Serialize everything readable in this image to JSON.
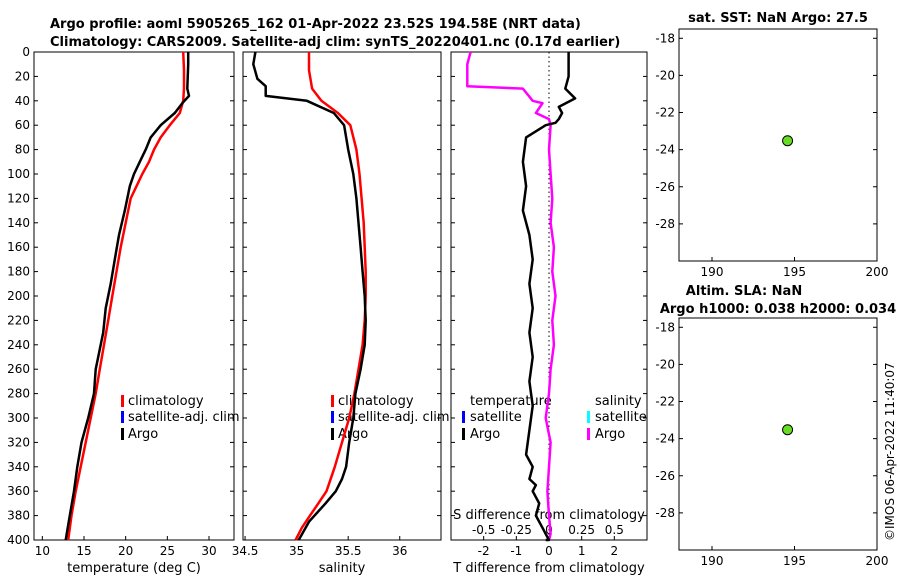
{
  "header": {
    "title_line1": "Argo profile: aoml 5905265_162 01-Apr-2022 23.52S 194.58E (NRT data)",
    "title_line2": "Climatology: CARS2009. Satellite-adj clim: synTS_20220401.nc (0.17d earlier)"
  },
  "colors": {
    "climatology": "#ff0000",
    "satellite_adj": "#0000ff",
    "argo": "#000000",
    "salinity_argo": "#ff00ff",
    "salinity_satellite": "#00ffff",
    "marker": "#66dd22"
  },
  "chart_data": [
    {
      "type": "line",
      "name": "temperature-profile",
      "xlabel": "temperature (deg C)",
      "xlim": [
        9,
        33
      ],
      "xticks": [
        10,
        15,
        20,
        25,
        30
      ],
      "ylim": [
        400,
        0
      ],
      "yticks": [
        0,
        20,
        40,
        60,
        80,
        100,
        120,
        140,
        160,
        180,
        200,
        220,
        240,
        260,
        280,
        300,
        320,
        340,
        360,
        380,
        400
      ],
      "legend": [
        "climatology",
        "satellite-adj. clim",
        "Argo"
      ],
      "series": [
        {
          "name": "climatology",
          "x": [
            26.9,
            27.0,
            27.0,
            26.9,
            26.5,
            25.3,
            24.2,
            23.4,
            22.8,
            22.0,
            21.3,
            20.6,
            20.0,
            19.4,
            18.9,
            18.4,
            17.9,
            17.4,
            16.9,
            16.4,
            15.8,
            15.2,
            14.6,
            14.0,
            13.5,
            13.1
          ],
          "y": [
            0,
            15,
            30,
            40,
            50,
            60,
            70,
            80,
            90,
            100,
            110,
            120,
            140,
            160,
            180,
            200,
            220,
            240,
            260,
            280,
            300,
            320,
            340,
            360,
            380,
            400
          ]
        },
        {
          "name": "Argo",
          "x": [
            27.5,
            27.5,
            27.4,
            27.6,
            26.8,
            25.9,
            24.2,
            23.0,
            22.4,
            21.7,
            21.0,
            20.5,
            19.9,
            19.2,
            18.7,
            18.2,
            17.6,
            17.3,
            16.4,
            16.2,
            15.5,
            14.7,
            14.2,
            13.8,
            13.3,
            12.8
          ],
          "y": [
            0,
            10,
            30,
            36,
            42,
            50,
            60,
            70,
            80,
            90,
            100,
            110,
            130,
            150,
            170,
            190,
            210,
            230,
            260,
            280,
            300,
            320,
            340,
            360,
            380,
            400
          ]
        }
      ]
    },
    {
      "type": "line",
      "name": "salinity-profile",
      "xlabel": "salinity",
      "xlim": [
        34.48,
        36.4
      ],
      "xticks": [
        34.5,
        35,
        35.5,
        36
      ],
      "xtick_labels": [
        "34.5",
        "35",
        "35.5",
        "36"
      ],
      "ylim": [
        400,
        0
      ],
      "legend": [
        "climatology",
        "satellite-adj. clim",
        "Argo"
      ],
      "series": [
        {
          "name": "climatology",
          "x": [
            35.12,
            35.12,
            35.15,
            35.24,
            35.4,
            35.52,
            35.58,
            35.61,
            35.63,
            35.65,
            35.66,
            35.67,
            35.67,
            35.66,
            35.64,
            35.6,
            35.56,
            35.51,
            35.44,
            35.37,
            35.29,
            35.21,
            35.13,
            35.05,
            34.99
          ],
          "y": [
            0,
            15,
            30,
            40,
            50,
            60,
            80,
            100,
            120,
            140,
            160,
            180,
            200,
            220,
            240,
            260,
            280,
            300,
            320,
            340,
            360,
            370,
            380,
            390,
            400
          ]
        },
        {
          "name": "Argo",
          "x": [
            34.6,
            34.58,
            34.62,
            34.7,
            34.7,
            35.1,
            35.36,
            35.46,
            35.5,
            35.55,
            35.58,
            35.6,
            35.62,
            35.64,
            35.66,
            35.67,
            35.66,
            35.62,
            35.57,
            35.55,
            35.51,
            35.48,
            35.44,
            35.38,
            35.28,
            35.12,
            35.02
          ],
          "y": [
            0,
            10,
            22,
            28,
            36,
            40,
            50,
            60,
            80,
            100,
            120,
            140,
            160,
            180,
            200,
            220,
            240,
            260,
            280,
            300,
            320,
            340,
            350,
            360,
            370,
            385,
            400
          ]
        }
      ]
    },
    {
      "type": "line",
      "name": "difference-profile",
      "xlabel": "T difference from climatology",
      "xlabel_top": "S difference from climatology",
      "xlim": [
        -3,
        3
      ],
      "xticks": [
        -2,
        -1,
        0,
        1,
        2
      ],
      "sticks": [
        -0.5,
        -0.25,
        0,
        0.25,
        0.5
      ],
      "stick_labels": [
        "-0.5",
        "-0.25",
        "0",
        "0.25",
        "0.5"
      ],
      "ylim": [
        400,
        0
      ],
      "legend_temperature_title": "temperature",
      "legend_salinity_title": "salinity",
      "legend_temperature": [
        "satellite",
        "Argo"
      ],
      "legend_salinity": [
        "satellite",
        "Argo"
      ],
      "series": [
        {
          "name": "T Argo",
          "x": [
            0.6,
            0.6,
            0.5,
            0.8,
            0.3,
            0.4,
            0.3,
            0.2,
            -0.1,
            -0.7,
            -0.8,
            -0.7,
            -0.8,
            -0.6,
            -0.5,
            -0.6,
            -0.5,
            -0.6,
            -0.5,
            -0.6,
            -0.5,
            -0.6,
            -0.7,
            -0.5,
            -0.6,
            -0.4,
            -0.5,
            -0.3,
            -0.4,
            -0.2,
            -0.1,
            0.0,
            -0.1
          ],
          "y": [
            0,
            20,
            30,
            38,
            45,
            50,
            55,
            58,
            60,
            70,
            90,
            110,
            130,
            150,
            170,
            190,
            210,
            230,
            250,
            270,
            290,
            310,
            330,
            340,
            350,
            355,
            360,
            370,
            380,
            390,
            395,
            400,
            400
          ]
        },
        {
          "name": "S Argo",
          "x": [
            -2.4,
            -2.5,
            -2.5,
            -0.8,
            -0.5,
            -0.2,
            -0.4,
            0.0,
            0.05,
            0.0,
            0.05,
            0.1,
            0.05,
            0.15,
            0.1,
            0.2,
            0.1,
            0.15,
            0.05,
            0.0,
            -0.1,
            0.05,
            0.0,
            -0.05,
            0.0,
            0.05,
            0.0
          ],
          "y": [
            0,
            10,
            28,
            30,
            40,
            42,
            50,
            55,
            60,
            80,
            100,
            120,
            140,
            160,
            180,
            200,
            220,
            240,
            260,
            280,
            300,
            320,
            340,
            360,
            380,
            395,
            400
          ]
        }
      ]
    },
    {
      "type": "scatter",
      "name": "sst-map",
      "title": "sat. SST: NaN Argo: 27.5",
      "xlim": [
        188,
        200
      ],
      "xticks": [
        190,
        195,
        200
      ],
      "ylim": [
        -30,
        -17.5
      ],
      "yticks": [
        -18,
        -20,
        -22,
        -24,
        -26,
        -28
      ],
      "points": [
        {
          "x": 194.58,
          "y": -23.52
        }
      ]
    },
    {
      "type": "scatter",
      "name": "sla-map",
      "title_line1": "Altim. SLA: NaN",
      "title_line2": "Argo h1000: 0.038 h2000: 0.034",
      "xlim": [
        188,
        200
      ],
      "xticks": [
        190,
        195,
        200
      ],
      "ylim": [
        -30,
        -17.5
      ],
      "yticks": [
        -18,
        -20,
        -22,
        -24,
        -26,
        -28
      ],
      "points": [
        {
          "x": 194.58,
          "y": -23.52
        }
      ]
    }
  ],
  "footer": {
    "imos_stamp": "©IMOS 06-Apr-2022 11:40:07"
  }
}
